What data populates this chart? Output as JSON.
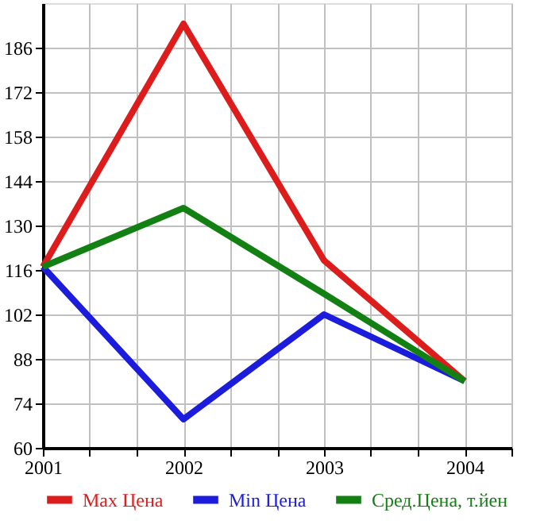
{
  "chart_data": {
    "type": "line",
    "x": [
      2001,
      2002,
      2003,
      2004
    ],
    "series": [
      {
        "name": "Max Цена",
        "color": "#dd1c1c",
        "values": [
          117,
          193.5,
          119,
          81
        ]
      },
      {
        "name": "Min Цена",
        "color": "#1c1cdd",
        "values": [
          117,
          69,
          102,
          81
        ]
      },
      {
        "name": "Сред.Цена, т.йен",
        "color": "#138013",
        "values": [
          117,
          135.5,
          108.5,
          81
        ]
      }
    ],
    "xlim": [
      2001,
      2004.333
    ],
    "xticks": [
      2001,
      {
        "value": 2001.333,
        "label": null
      },
      {
        "value": 2001.667,
        "label": null
      },
      2002,
      {
        "value": 2002.333,
        "label": null
      },
      {
        "value": 2002.667,
        "label": null
      },
      2003,
      {
        "value": 2003.333,
        "label": null
      },
      {
        "value": 2003.667,
        "label": null
      },
      2004,
      {
        "value": 2004.333,
        "label": null
      }
    ],
    "ylim": [
      60,
      200
    ],
    "yticks": [
      60,
      74,
      88,
      102,
      116,
      130,
      144,
      158,
      172,
      186
    ],
    "grid": true,
    "legend": "bottom",
    "marker": "none",
    "line_style": "solid"
  }
}
